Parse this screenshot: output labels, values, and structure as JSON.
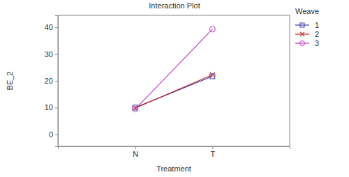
{
  "chart_data": {
    "type": "line",
    "title": "Interaction Plot",
    "x_label": "Treatment",
    "y_label": "BE_2",
    "categories": [
      "N",
      "T"
    ],
    "series": [
      {
        "name": "1",
        "color": "#3a3aa8",
        "marker": "square",
        "values": [
          10.0,
          21.7
        ]
      },
      {
        "name": "2",
        "color": "#c83232",
        "marker": "x",
        "values": [
          9.8,
          22.3
        ]
      },
      {
        "name": "3",
        "color": "#c040c0",
        "marker": "circle",
        "values": [
          9.4,
          39.3
        ]
      }
    ],
    "legend_title": "Weave",
    "legend": "top-right",
    "ylim": [
      -4.5,
      44.5
    ],
    "yticks": [
      0,
      10,
      20,
      30,
      40
    ],
    "grid": false
  }
}
